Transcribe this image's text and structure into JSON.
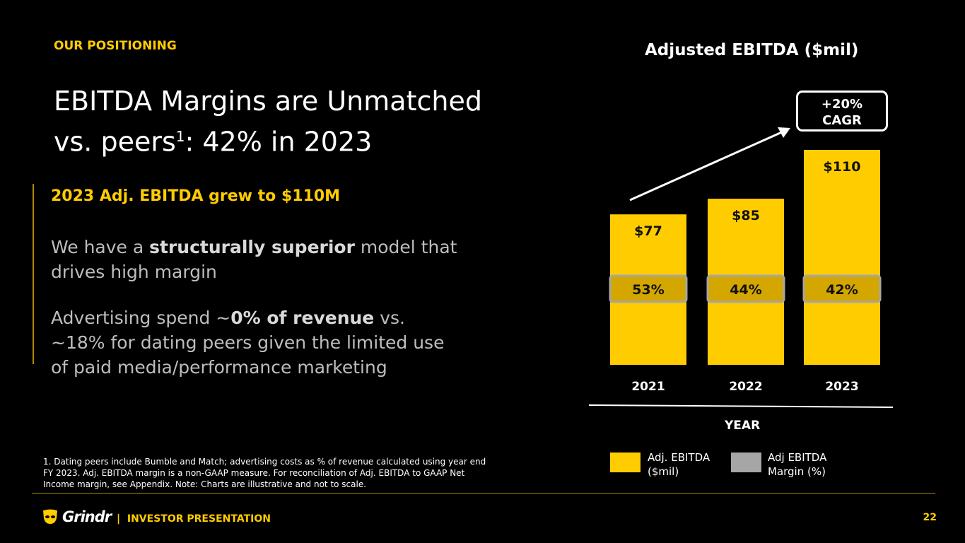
{
  "header": {
    "kicker": "OUR POSITIONING",
    "title_line1": "EBITDA Margins are Unmatched",
    "title_line2_pre": "vs. peers",
    "title_sup": "1",
    "title_line2_post": ": 42% in 2023"
  },
  "content": {
    "subhead": "2023 Adj. EBITDA grew to $110M",
    "p1_pre": "We have a ",
    "p1_bold": "structurally superior",
    "p1_post": " model that drives high margin",
    "p2_pre": "Advertising spend ~",
    "p2_bold": "0% of revenue",
    "p2_post": " vs. ~18% for dating peers given the limited use of paid media/performance marketing"
  },
  "footnote": "1. Dating peers include Bumble and Match; advertising costs  as % of revenue calculated using year end FY 2023. Adj. EBITDA margin is a non-GAAP measure. For reconciliation of Adj. EBITDA to GAAP Net Income margin, see Appendix. Note: Charts are illustrative and not to scale.",
  "footer": {
    "brand": "Grindr",
    "separator": "|",
    "label": "INVESTOR PRESENTATION",
    "page": "22"
  },
  "colors": {
    "accent": "#ffcc00",
    "margin_band": "#d4a600",
    "legend_margin": "#a6a6a6",
    "background": "#000000"
  },
  "chart_data": {
    "type": "bar",
    "title": "Adjusted EBITDA ($mil)",
    "categories": [
      "2021",
      "2022",
      "2023"
    ],
    "xlabel": "YEAR",
    "series": [
      {
        "name": "Adj. EBITDA ($mil)",
        "values": [
          77,
          85,
          110
        ],
        "labels": [
          "$77",
          "$85",
          "$110"
        ]
      },
      {
        "name": "Adj EBITDA Margin (%)",
        "values": [
          53,
          44,
          42
        ],
        "labels": [
          "53%",
          "44%",
          "42%"
        ]
      }
    ],
    "annotation": "+20% CAGR",
    "legend_position": "bottom",
    "grid": false
  }
}
